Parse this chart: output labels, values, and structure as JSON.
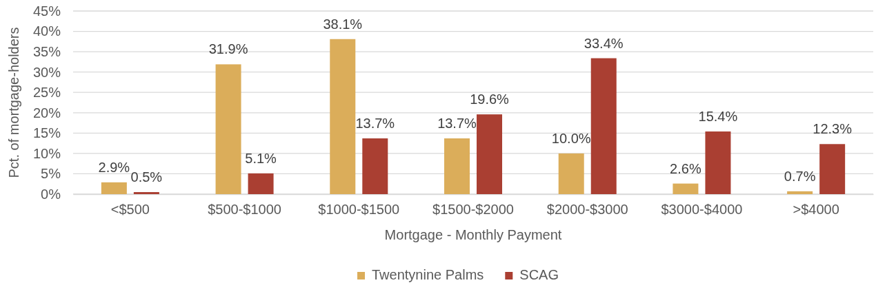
{
  "chart_data": {
    "type": "bar",
    "xlabel": "Mortgage - Monthly Payment",
    "ylabel": "Pct. of mortgage-holders",
    "categories": [
      "<$500",
      "$500-$1000",
      "$1000-$1500",
      "$1500-$2000",
      "$2000-$3000",
      "$3000-$4000",
      ">$4000"
    ],
    "series": [
      {
        "name": "Twentynine Palms",
        "color": "#dbad5a",
        "values": [
          2.9,
          31.9,
          38.1,
          13.7,
          10.0,
          2.6,
          0.7
        ],
        "value_labels": [
          "2.9%",
          "31.9%",
          "38.1%",
          "13.7%",
          "10.0%",
          "2.6%",
          "0.7%"
        ]
      },
      {
        "name": "SCAG",
        "color": "#aa3f32",
        "values": [
          0.5,
          5.1,
          13.7,
          19.6,
          33.4,
          15.4,
          12.3
        ],
        "value_labels": [
          "0.5%",
          "5.1%",
          "13.7%",
          "19.6%",
          "33.4%",
          "15.4%",
          "12.3%"
        ]
      }
    ],
    "ylim": [
      0,
      45
    ],
    "yticks": [
      {
        "value": 0,
        "label": "0%"
      },
      {
        "value": 5,
        "label": "5%"
      },
      {
        "value": 10,
        "label": "10%"
      },
      {
        "value": 15,
        "label": "15%"
      },
      {
        "value": 20,
        "label": "20%"
      },
      {
        "value": 25,
        "label": "25%"
      },
      {
        "value": 30,
        "label": "30%"
      },
      {
        "value": 35,
        "label": "35%"
      },
      {
        "value": 40,
        "label": "40%"
      },
      {
        "value": 45,
        "label": "45%"
      }
    ],
    "grid": "y",
    "legend": "bottom"
  }
}
